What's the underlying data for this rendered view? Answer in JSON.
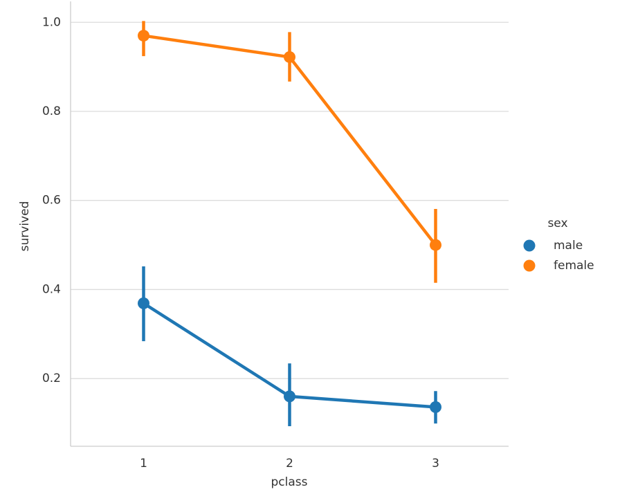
{
  "chart_data": {
    "type": "pointplot",
    "x_label": "pclass",
    "y_label": "survived",
    "categories": [
      "1",
      "2",
      "3"
    ],
    "series": [
      {
        "name": "male",
        "color": "#1f77b4",
        "values": [
          0.369,
          0.16,
          0.136
        ],
        "ci": [
          [
            0.284,
            0.452
          ],
          [
            0.093,
            0.234
          ],
          [
            0.099,
            0.172
          ]
        ]
      },
      {
        "name": "female",
        "color": "#ff7f0e",
        "values": [
          0.97,
          0.922,
          0.5
        ],
        "ci": [
          [
            0.924,
            1.003
          ],
          [
            0.867,
            0.978
          ],
          [
            0.415,
            0.581
          ]
        ]
      }
    ],
    "ylim": [
      0.048,
      1.047
    ],
    "yticks": [
      0.2,
      0.4,
      0.6,
      0.8,
      {
        "value": 1,
        "label": "1.0"
      }
    ],
    "grid": true,
    "legend_title": "sex",
    "legend_position": "right"
  }
}
